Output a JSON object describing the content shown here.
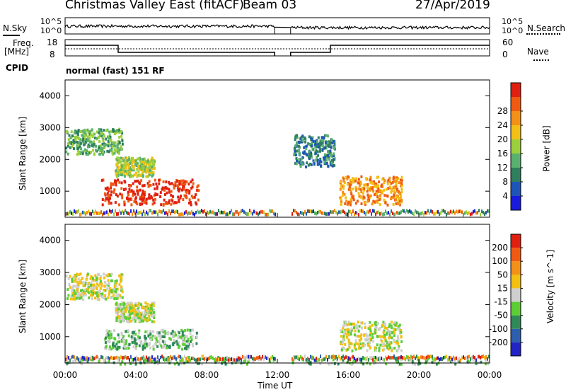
{
  "header": {
    "title": "Christmas Valley East (fitACF)",
    "beam": "Beam 03",
    "date": "27/Apr/2019"
  },
  "noise_panel": {
    "left_label": "N.Sky",
    "right_label": "N.Search",
    "ticks": [
      "10^5",
      "10^0"
    ]
  },
  "freq_panel": {
    "left_label_1": "Freq.",
    "left_label_2": "[MHz]",
    "right_label": "Nave",
    "left_ticks": [
      "18",
      "8"
    ],
    "right_ticks": [
      "60",
      "0"
    ]
  },
  "cpid": {
    "label": "CPID",
    "text": "normal (fast) 151 RF"
  },
  "x_axis": {
    "label": "Time UT",
    "ticks": [
      "00:00",
      "04:00",
      "08:00",
      "12:00",
      "16:00",
      "20:00",
      "00:00"
    ]
  },
  "chart_data": [
    {
      "type": "heatmap",
      "name": "power",
      "ylabel": "Slant Range [km]",
      "yticks": [
        1000,
        2000,
        3000,
        4000
      ],
      "ylim": [
        180,
        4500
      ],
      "xlim": [
        0,
        24
      ],
      "colorbar": {
        "label": "Power [dB]",
        "ticks": [
          "4",
          "8",
          "12",
          "16",
          "20",
          "24",
          "28"
        ],
        "colors": [
          "#1a1adf",
          "#1f55b8",
          "#2f7f5e",
          "#5ab06e",
          "#9ccf3b",
          "#f3c015",
          "#f39015",
          "#f05a10",
          "#e01f10"
        ]
      },
      "data_gap_hours": [
        11.85,
        12.75
      ],
      "echo_regions": [
        {
          "t0": 0.0,
          "t1": 3.2,
          "r0": 2200,
          "r1": 3000,
          "level": 3
        },
        {
          "t0": 2.8,
          "t1": 5.0,
          "r0": 1500,
          "r1": 2100,
          "level": 4
        },
        {
          "t0": 2.0,
          "t1": 7.5,
          "r0": 600,
          "r1": 1400,
          "level": 8
        },
        {
          "t0": 15.5,
          "t1": 19.0,
          "r0": 600,
          "r1": 1500,
          "level": 6
        },
        {
          "t0": 12.9,
          "t1": 15.2,
          "r0": 1800,
          "r1": 2800,
          "level": 2
        }
      ]
    },
    {
      "type": "heatmap",
      "name": "velocity",
      "ylabel": "Slant Range [km]",
      "yticks": [
        1000,
        2000,
        3000,
        4000
      ],
      "ylim": [
        180,
        4500
      ],
      "xlim": [
        0,
        24
      ],
      "colorbar": {
        "label": "Velocity [m s^-1]",
        "ticks": [
          "200",
          "100",
          "50",
          "15",
          "-15",
          "-50",
          "-100",
          "-200"
        ],
        "colors": [
          "#2323c8",
          "#2e5fae",
          "#2f8a58",
          "#5ccd34",
          "#cfcfcf",
          "#f3bf10",
          "#f39015",
          "#f05a10",
          "#e01f10"
        ]
      },
      "data_gap_hours": [
        11.85,
        12.75
      ],
      "echo_regions": [
        {
          "t0": 0.0,
          "t1": 3.2,
          "r0": 2200,
          "r1": 3000,
          "level": 4
        },
        {
          "t0": 2.8,
          "t1": 5.0,
          "r0": 1500,
          "r1": 2100,
          "level": 4
        },
        {
          "t0": 2.2,
          "t1": 7.4,
          "r0": 650,
          "r1": 1250,
          "level": 3
        },
        {
          "t0": 15.5,
          "t1": 19.0,
          "r0": 600,
          "r1": 1500,
          "level": 4
        },
        {
          "t0": 0.0,
          "t1": 24.0,
          "r0": 180,
          "r1": 400,
          "level": 3
        }
      ]
    }
  ]
}
